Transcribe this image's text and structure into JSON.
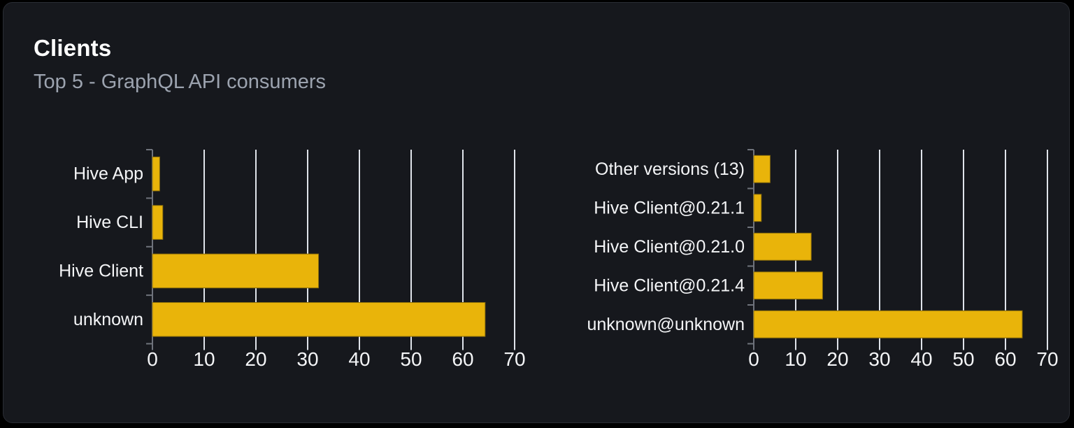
{
  "card": {
    "title": "Clients",
    "subtitle": "Top 5 - GraphQL API consumers"
  },
  "colors": {
    "page_background": "#000000",
    "card_background": "#16181d",
    "card_border": "#2a2d34",
    "title": "#ffffff",
    "subtitle": "#9ca3af",
    "bar_fill": "#e9b40a",
    "bar_stroke": "#8a6d0b",
    "grid_line": "#dfe3ea",
    "axis_line": "#6f737c",
    "category_label": "#f4f5f7",
    "tick_label": "#f4f5f7"
  },
  "chart_data": [
    {
      "type": "bar",
      "orientation": "horizontal",
      "name": "clients",
      "categories": [
        "Hive App",
        "Hive CLI",
        "Hive Client",
        "unknown"
      ],
      "values": [
        1.4,
        2.0,
        32.1,
        64.3
      ],
      "xlim": [
        0,
        70
      ],
      "xticks": [
        0,
        10,
        20,
        30,
        40,
        50,
        60,
        70
      ],
      "grid": true,
      "legend": "none",
      "xlabel": "",
      "ylabel": ""
    },
    {
      "type": "bar",
      "orientation": "horizontal",
      "name": "client-versions",
      "categories": [
        "Other versions (13)",
        "Hive Client@0.21.1",
        "Hive Client@0.21.0",
        "Hive Client@0.21.4",
        "unknown@unknown"
      ],
      "values": [
        3.9,
        1.8,
        13.7,
        16.4,
        64.0
      ],
      "xlim": [
        0,
        70
      ],
      "xticks": [
        0,
        10,
        20,
        30,
        40,
        50,
        60,
        70
      ],
      "grid": true,
      "legend": "none",
      "xlabel": "",
      "ylabel": ""
    }
  ]
}
